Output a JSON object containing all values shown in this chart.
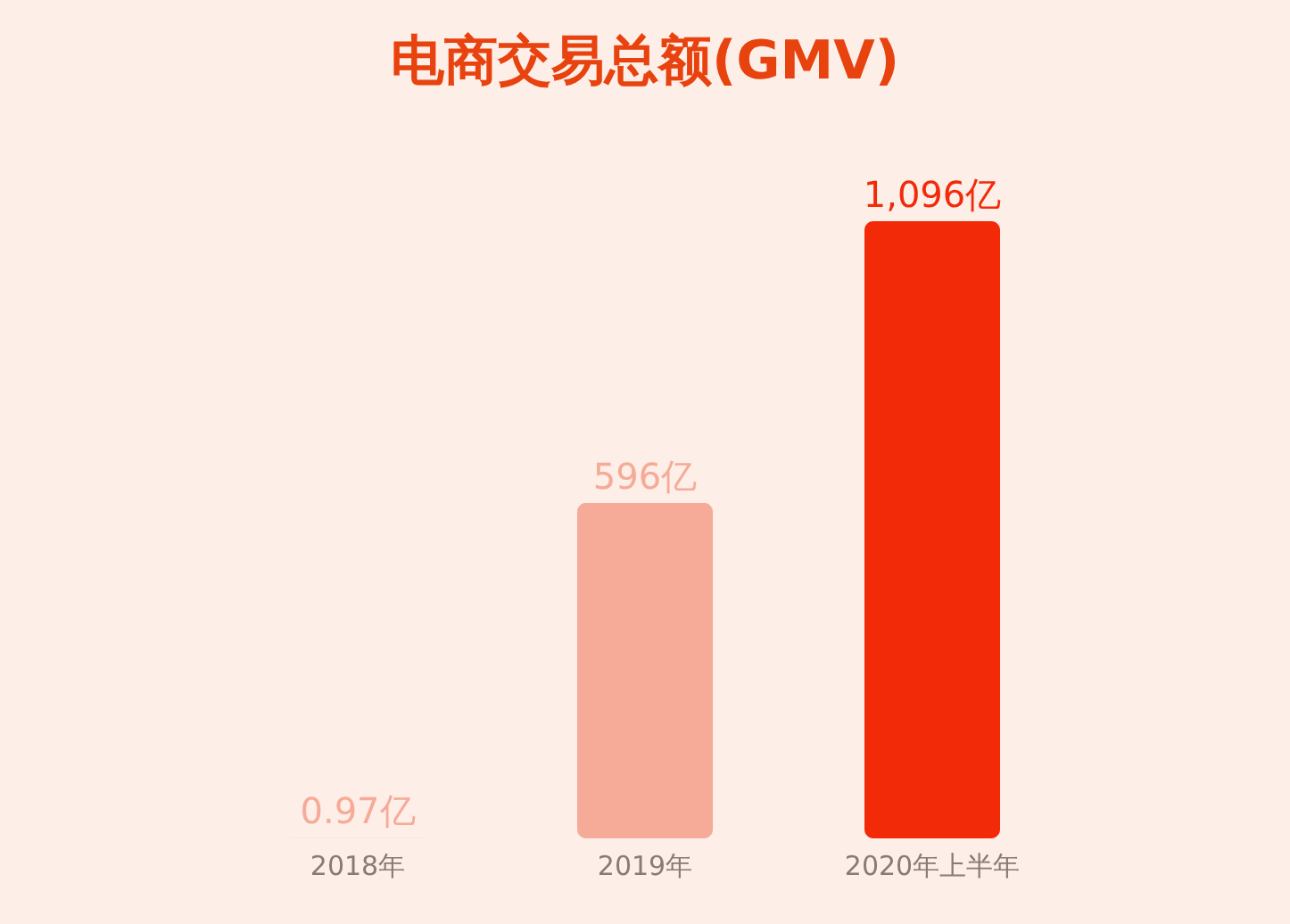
{
  "chart_data": {
    "type": "bar",
    "title": "电商交易总额(GMV)",
    "categories": [
      "2018年",
      "2019年",
      "2020年上半年"
    ],
    "values": [
      0.97,
      596,
      1096
    ],
    "colors": [
      "#f5ab98",
      "#f5ab98",
      "#f22a08"
    ],
    "value_labels": [
      "0.97亿",
      "596亿",
      "1,096亿"
    ]
  }
}
